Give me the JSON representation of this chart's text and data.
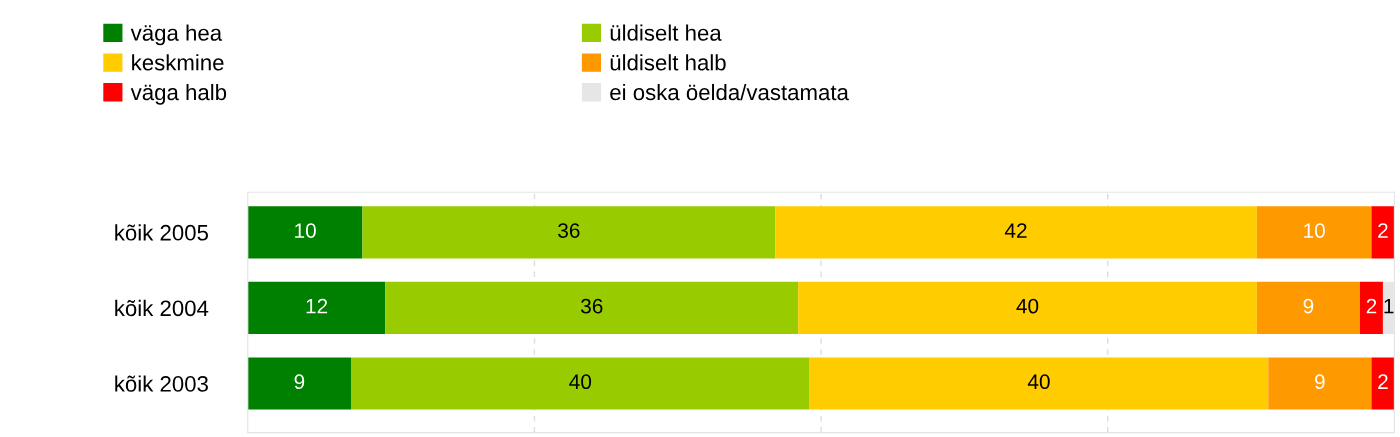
{
  "chart_data": {
    "type": "bar",
    "orientation": "horizontal",
    "stacked": true,
    "data_labels": true,
    "categories": [
      "kõik 2005",
      "kõik 2004",
      "kõik 2003"
    ],
    "series": [
      {
        "name": "väga hea",
        "color": "#008000",
        "values": [
          10,
          12,
          9
        ]
      },
      {
        "name": "üldiselt hea",
        "color": "#99cc00",
        "values": [
          36,
          36,
          40
        ]
      },
      {
        "name": "keskmine",
        "color": "#ffcc00",
        "values": [
          42,
          40,
          40
        ]
      },
      {
        "name": "üldiselt halb",
        "color": "#ff9900",
        "values": [
          10,
          9,
          9
        ]
      },
      {
        "name": "väga halb",
        "color": "#ff0000",
        "values": [
          2,
          2,
          2
        ]
      },
      {
        "name": "ei oska öelda/vastamata",
        "color": "#e6e6e6",
        "values": [
          null,
          1,
          null
        ]
      }
    ],
    "xlim": [
      0,
      100
    ],
    "xticks": [
      {
        "value": 25,
        "label": null
      },
      {
        "value": 50,
        "label": null
      },
      {
        "value": 75,
        "label": null
      }
    ],
    "grid": "x",
    "legend": "top left",
    "tick_labels": "y"
  }
}
